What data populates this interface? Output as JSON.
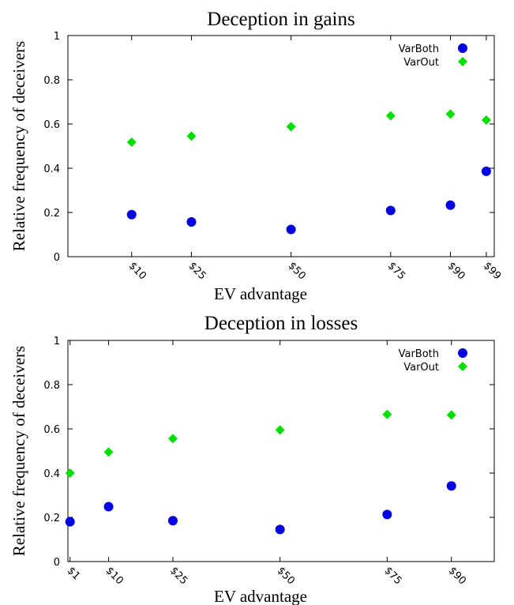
{
  "chart_data": [
    {
      "type": "scatter",
      "title": "Deception in gains",
      "xlabel": "EV advantage",
      "ylabel": "Relative frequency of deceivers",
      "ylim": [
        0,
        1
      ],
      "xlim": [
        -6,
        101
      ],
      "yticks": [
        0,
        0.2,
        0.4,
        0.6,
        0.8,
        1
      ],
      "ytick_labels": [
        "0",
        "0.2",
        "0.4",
        "0.6",
        "0.8",
        "1"
      ],
      "xticks": [
        10,
        25,
        50,
        75,
        90,
        99
      ],
      "xtick_labels": [
        "$10",
        "$25",
        "$50",
        "$75",
        "$90",
        "$99"
      ],
      "legend": "top-right",
      "grid": false,
      "series": [
        {
          "name": "VarBoth",
          "marker": "circle",
          "color": "#0000e0",
          "x": [
            10,
            25,
            50,
            75,
            90,
            99
          ],
          "y": [
            0.19,
            0.157,
            0.123,
            0.209,
            0.233,
            0.386
          ]
        },
        {
          "name": "VarOut",
          "marker": "diamond",
          "color": "#00e000",
          "x": [
            10,
            25,
            50,
            75,
            90,
            99
          ],
          "y": [
            0.518,
            0.545,
            0.588,
            0.637,
            0.645,
            0.618
          ]
        }
      ]
    },
    {
      "type": "scatter",
      "title": "Deception in losses",
      "xlabel": "EV advantage",
      "ylabel": "Relative frequency of deceivers",
      "ylim": [
        0,
        1
      ],
      "xlim": [
        0.5,
        100
      ],
      "yticks": [
        0,
        0.2,
        0.4,
        0.6,
        0.8,
        1
      ],
      "ytick_labels": [
        "0",
        "0.2",
        "0.4",
        "0.6",
        "0.8",
        "1"
      ],
      "xticks": [
        1,
        10,
        25,
        50,
        75,
        90
      ],
      "xtick_labels": [
        "$1",
        "$10",
        "$25",
        "$50",
        "$75",
        "$90"
      ],
      "legend": "top-right",
      "grid": false,
      "series": [
        {
          "name": "VarBoth",
          "marker": "circle",
          "color": "#0000e0",
          "x": [
            1,
            10,
            25,
            50,
            75,
            90
          ],
          "y": [
            0.18,
            0.248,
            0.185,
            0.145,
            0.213,
            0.342
          ]
        },
        {
          "name": "VarOut",
          "marker": "diamond",
          "color": "#00e000",
          "x": [
            1,
            10,
            25,
            50,
            75,
            90
          ],
          "y": [
            0.4,
            0.495,
            0.556,
            0.595,
            0.665,
            0.663
          ]
        }
      ]
    }
  ]
}
